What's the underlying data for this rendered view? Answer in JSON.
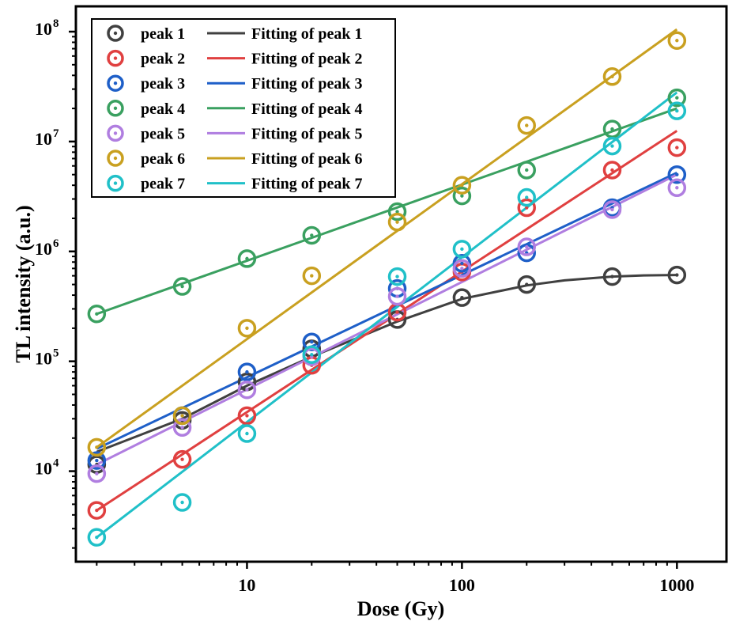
{
  "chart_data": {
    "type": "scatter",
    "title": "",
    "xlabel": "Dose (Gy)",
    "ylabel": "TL intensity (a.u.)",
    "xscale": "log",
    "yscale": "log",
    "xlim": [
      1.6,
      1700
    ],
    "ylim": [
      1500,
      170000000
    ],
    "xticks": [
      {
        "value": 10,
        "label": "10"
      },
      {
        "value": 100,
        "label": "100"
      },
      {
        "value": 1000,
        "label": "1000"
      }
    ],
    "yticks": [
      {
        "value": 10000,
        "base": "10",
        "exp": "4"
      },
      {
        "value": 100000,
        "base": "10",
        "exp": "5"
      },
      {
        "value": 1000000,
        "base": "10",
        "exp": "6"
      },
      {
        "value": 10000000,
        "base": "10",
        "exp": "7"
      },
      {
        "value": 100000000,
        "base": "10",
        "exp": "8"
      }
    ],
    "grid": false,
    "legend_position": "top-left",
    "x": [
      2,
      5,
      10,
      20,
      50,
      100,
      200,
      500,
      1000
    ],
    "series": [
      {
        "name": "peak 1",
        "fit_name": "Fitting of peak 1",
        "color": "#404040",
        "values": [
          11500,
          29000,
          65000,
          130000,
          240000,
          380000,
          500000,
          590000,
          610000
        ],
        "fit_x": [
          2,
          5,
          10,
          20,
          50,
          100,
          200,
          300,
          500,
          700,
          1000
        ],
        "fit_y": [
          15000,
          30000,
          60000,
          110000,
          230000,
          370000,
          490000,
          545000,
          590000,
          605000,
          610000
        ]
      },
      {
        "name": "peak 2",
        "fit_name": "Fitting of peak 2",
        "color": "#e04040",
        "values": [
          4400,
          12800,
          32000,
          92000,
          280000,
          650000,
          2500000,
          5500000,
          8800000
        ],
        "fit_x": [
          2,
          1000
        ],
        "fit_y": [
          4400,
          12500000
        ]
      },
      {
        "name": "peak 3",
        "fit_name": "Fitting of peak 3",
        "color": "#1e5fc8",
        "values": [
          12500,
          32000,
          80000,
          150000,
          460000,
          780000,
          970000,
          2500000,
          5000000
        ],
        "fit_x": [
          2,
          1000
        ],
        "fit_y": [
          16000,
          5200000
        ]
      },
      {
        "name": "peak 4",
        "fit_name": "Fitting of peak 4",
        "color": "#3aa060",
        "values": [
          270000,
          480000,
          860000,
          1400000,
          2300000,
          3200000,
          5500000,
          13000000,
          25000000
        ],
        "fit_x": [
          2,
          1000
        ],
        "fit_y": [
          270000,
          20000000
        ]
      },
      {
        "name": "peak 5",
        "fit_name": "Fitting of peak 5",
        "color": "#b07ee0",
        "values": [
          9500,
          25000,
          55000,
          110000,
          390000,
          700000,
          1100000,
          2400000,
          3800000
        ],
        "fit_x": [
          2,
          1000
        ],
        "fit_y": [
          11500,
          5000000
        ]
      },
      {
        "name": "peak 6",
        "fit_name": "Fitting of peak 6",
        "color": "#c9a020",
        "values": [
          16500,
          32000,
          200000,
          600000,
          1850000,
          4000000,
          14000000,
          39000000,
          83000000
        ],
        "fit_x": [
          2,
          1000
        ],
        "fit_y": [
          16500,
          105000000
        ]
      },
      {
        "name": "peak 7",
        "fit_name": "Fitting of peak 7",
        "color": "#20c0c8",
        "values": [
          2500,
          5200,
          22000,
          115000,
          590000,
          1050000,
          3100000,
          9100000,
          19000000
        ],
        "fit_x": [
          2,
          1000
        ],
        "fit_y": [
          2500,
          28000000
        ]
      }
    ]
  }
}
